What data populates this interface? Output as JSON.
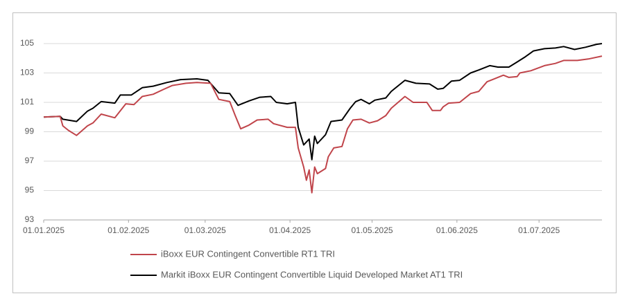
{
  "chart_data": {
    "type": "line",
    "xlim": [
      "01.01.2025",
      "24.07.2025"
    ],
    "xticks": [
      "01.01.2025",
      "01.02.2025",
      "01.03.2025",
      "01.04.2025",
      "01.05.2025",
      "01.06.2025",
      "01.07.2025"
    ],
    "ylim": [
      93,
      105
    ],
    "yticks": [
      93,
      95,
      97,
      99,
      101,
      103,
      105
    ],
    "grid": true,
    "series": [
      {
        "name": "iBoxx EUR Contingent Convertible RT1 TRI",
        "color": "#c0444a",
        "x": [
          "01.01.2025",
          "07.01.2025",
          "08.01.2025",
          "10.01.2025",
          "13.01.2025",
          "17.01.2025",
          "19.01.2025",
          "22.01.2025",
          "27.01.2025",
          "31.01.2025",
          "03.02.2025",
          "06.02.2025",
          "10.02.2025",
          "14.02.2025",
          "17.02.2025",
          "22.02.2025",
          "26.02.2025",
          "03.03.2025",
          "06.03.2025",
          "10.03.2025",
          "12.03.2025",
          "14.03.2025",
          "17.03.2025",
          "20.03.2025",
          "24.03.2025",
          "26.03.2025",
          "31.03.2025",
          "03.04.2025",
          "04.04.2025",
          "06.04.2025",
          "07.04.2025",
          "08.04.2025",
          "09.04.2025",
          "10.04.2025",
          "11.04.2025",
          "14.04.2025",
          "15.04.2025",
          "17.04.2025",
          "20.04.2025",
          "22.04.2025",
          "24.04.2025",
          "27.04.2025",
          "30.04.2025",
          "03.05.2025",
          "06.05.2025",
          "08.05.2025",
          "13.05.2025",
          "16.05.2025",
          "21.05.2025",
          "23.05.2025",
          "26.05.2025",
          "27.05.2025",
          "29.05.2025",
          "02.06.2025",
          "06.06.2025",
          "09.06.2025",
          "12.06.2025",
          "14.06.2025",
          "18.06.2025",
          "20.06.2025",
          "23.06.2025",
          "24.06.2025",
          "28.06.2025",
          "03.07.2025",
          "07.07.2025",
          "10.07.2025",
          "15.07.2025",
          "19.07.2025",
          "24.07.2025"
        ],
        "values": [
          100,
          100.05,
          99.4,
          99.1,
          98.75,
          99.4,
          99.6,
          100.2,
          99.95,
          100.9,
          100.85,
          101.4,
          101.55,
          101.9,
          102.15,
          102.3,
          102.35,
          102.3,
          101.2,
          101.05,
          100.1,
          99.2,
          99.45,
          99.8,
          99.85,
          99.55,
          99.3,
          99.3,
          97.9,
          96.6,
          95.7,
          96.4,
          94.85,
          96.6,
          96.15,
          96.5,
          97.3,
          97.9,
          98.0,
          99.2,
          99.8,
          99.85,
          99.6,
          99.75,
          100.1,
          100.6,
          101.4,
          101.0,
          101.0,
          100.45,
          100.45,
          100.7,
          100.95,
          101.0,
          101.6,
          101.75,
          102.4,
          102.55,
          102.85,
          102.7,
          102.75,
          103.0,
          103.15,
          103.5,
          103.65,
          103.85,
          103.85,
          103.95,
          104.15
        ]
      },
      {
        "name": "Markit iBoxx EUR Contingent Convertible Liquid Developed Market AT1 TRI",
        "color": "#000000",
        "x": [
          "01.01.2025",
          "07.01.2025",
          "08.01.2025",
          "13.01.2025",
          "17.01.2025",
          "19.01.2025",
          "22.01.2025",
          "27.01.2025",
          "29.01.2025",
          "02.02.2025",
          "06.02.2025",
          "10.02.2025",
          "15.02.2025",
          "20.02.2025",
          "26.02.2025",
          "02.03.2025",
          "06.03.2025",
          "10.03.2025",
          "13.03.2025",
          "17.03.2025",
          "21.03.2025",
          "25.03.2025",
          "27.03.2025",
          "31.03.2025",
          "03.04.2025",
          "04.04.2025",
          "06.04.2025",
          "08.04.2025",
          "09.04.2025",
          "10.04.2025",
          "11.04.2025",
          "14.04.2025",
          "16.04.2025",
          "20.04.2025",
          "23.04.2025",
          "25.04.2025",
          "27.04.2025",
          "30.04.2025",
          "02.05.2025",
          "06.05.2025",
          "08.05.2025",
          "13.05.2025",
          "17.05.2025",
          "22.05.2025",
          "25.05.2025",
          "27.05.2025",
          "30.05.2025",
          "02.06.2025",
          "06.06.2025",
          "09.06.2025",
          "13.06.2025",
          "16.06.2025",
          "20.06.2025",
          "23.06.2025",
          "26.06.2025",
          "29.06.2025",
          "03.07.2025",
          "07.07.2025",
          "10.07.2025",
          "14.07.2025",
          "18.07.2025",
          "22.07.2025",
          "24.07.2025"
        ],
        "values": [
          100,
          100.05,
          99.85,
          99.7,
          100.4,
          100.6,
          101.05,
          100.95,
          101.5,
          101.5,
          102.0,
          102.1,
          102.35,
          102.55,
          102.6,
          102.5,
          101.65,
          101.6,
          100.8,
          101.1,
          101.35,
          101.4,
          101.0,
          100.9,
          101.0,
          99.3,
          98.1,
          98.5,
          97.1,
          98.7,
          98.2,
          98.8,
          99.7,
          99.8,
          100.6,
          101.05,
          101.2,
          100.9,
          101.15,
          101.3,
          101.75,
          102.5,
          102.3,
          102.25,
          101.9,
          101.95,
          102.45,
          102.5,
          103.0,
          103.2,
          103.5,
          103.4,
          103.4,
          103.75,
          104.1,
          104.5,
          104.65,
          104.7,
          104.8,
          104.6,
          104.75,
          104.95,
          105.0
        ]
      }
    ]
  }
}
